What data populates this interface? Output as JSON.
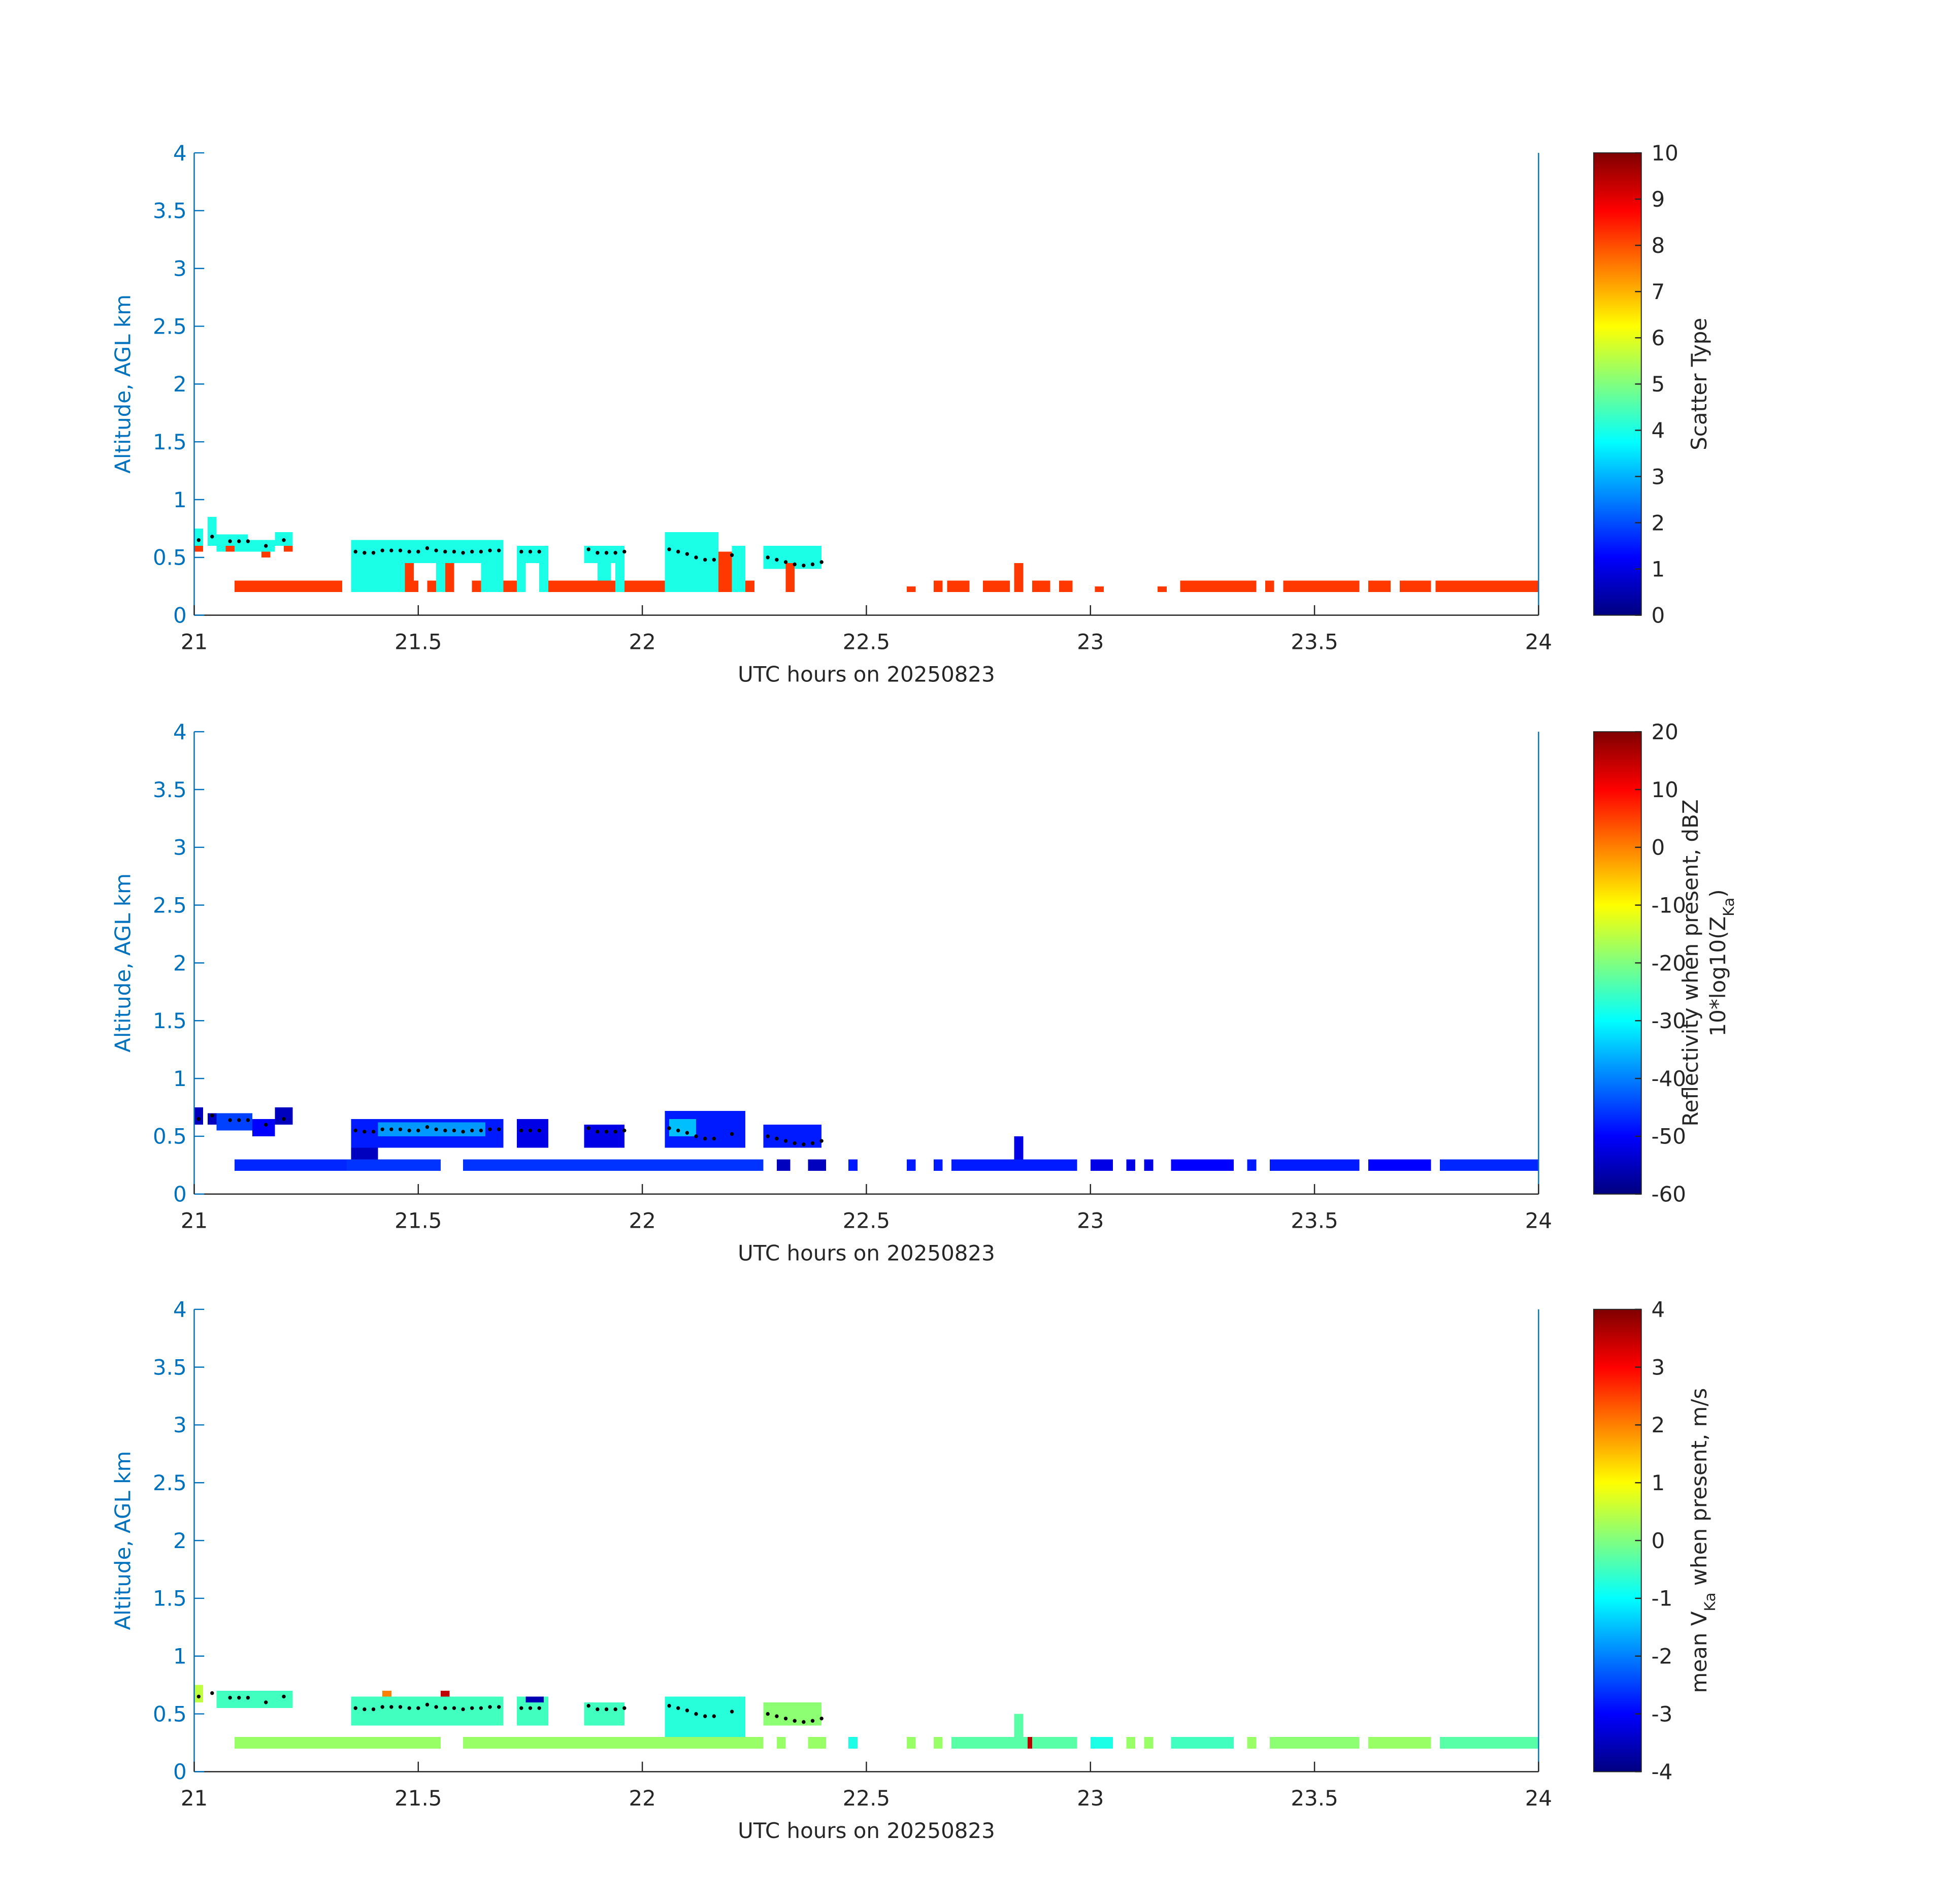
{
  "chart_data": [
    {
      "type": "heatmap",
      "colormap": "jet",
      "xlabel": "UTC hours on 20250823",
      "ylabel": "Altitude, AGL km",
      "xlim": [
        21,
        24
      ],
      "ylim": [
        0,
        4
      ],
      "xticks": [
        21,
        21.5,
        22,
        22.5,
        23,
        23.5,
        24
      ],
      "yticks": [
        0,
        0.5,
        1,
        1.5,
        2,
        2.5,
        3,
        3.5,
        4
      ],
      "colorbar": {
        "label": [
          [
            "Scatter Type"
          ]
        ],
        "lim": [
          0,
          10
        ],
        "ticks": [
          0,
          1,
          2,
          3,
          4,
          5,
          6,
          7,
          8,
          9,
          10
        ]
      },
      "cells": [
        [
          21.0,
          21.02,
          0.6,
          0.75,
          4
        ],
        [
          21.0,
          21.02,
          0.55,
          0.6,
          8.2
        ],
        [
          21.03,
          21.05,
          0.6,
          0.85,
          4
        ],
        [
          21.05,
          21.12,
          0.55,
          0.7,
          4
        ],
        [
          21.07,
          21.09,
          0.55,
          0.6,
          8.2
        ],
        [
          21.12,
          21.18,
          0.55,
          0.65,
          4
        ],
        [
          21.15,
          21.17,
          0.5,
          0.55,
          8.2
        ],
        [
          21.18,
          21.22,
          0.6,
          0.72,
          4
        ],
        [
          21.2,
          21.22,
          0.55,
          0.6,
          8.2
        ],
        [
          21.09,
          21.33,
          0.2,
          0.3,
          8.2
        ],
        [
          21.35,
          21.47,
          0.2,
          0.65,
          4
        ],
        [
          21.47,
          21.54,
          0.45,
          0.65,
          4
        ],
        [
          21.47,
          21.49,
          0.2,
          0.45,
          8.2
        ],
        [
          21.49,
          21.5,
          0.2,
          0.3,
          8.2
        ],
        [
          21.52,
          21.54,
          0.2,
          0.3,
          8.2
        ],
        [
          21.54,
          21.57,
          0.2,
          0.65,
          4
        ],
        [
          21.56,
          21.58,
          0.2,
          0.45,
          8.2
        ],
        [
          21.57,
          21.6,
          0.45,
          0.65,
          4
        ],
        [
          21.6,
          21.64,
          0.45,
          0.65,
          4
        ],
        [
          21.62,
          21.64,
          0.2,
          0.3,
          8.2
        ],
        [
          21.64,
          21.69,
          0.2,
          0.65,
          4
        ],
        [
          21.69,
          21.72,
          0.2,
          0.3,
          8.2
        ],
        [
          21.72,
          21.74,
          0.2,
          0.6,
          4
        ],
        [
          21.74,
          21.77,
          0.45,
          0.6,
          4
        ],
        [
          21.77,
          21.79,
          0.2,
          0.6,
          4
        ],
        [
          21.79,
          21.93,
          0.2,
          0.3,
          8.2
        ],
        [
          21.87,
          21.96,
          0.45,
          0.6,
          4
        ],
        [
          21.9,
          21.93,
          0.3,
          0.45,
          4
        ],
        [
          21.93,
          22.05,
          0.2,
          0.3,
          8.2
        ],
        [
          21.94,
          21.96,
          0.2,
          0.6,
          4
        ],
        [
          22.05,
          22.17,
          0.2,
          0.72,
          4
        ],
        [
          22.17,
          22.2,
          0.2,
          0.55,
          8.2
        ],
        [
          22.2,
          22.23,
          0.2,
          0.6,
          4
        ],
        [
          22.23,
          22.25,
          0.2,
          0.3,
          8.2
        ],
        [
          22.27,
          22.4,
          0.4,
          0.6,
          4
        ],
        [
          22.32,
          22.34,
          0.2,
          0.45,
          8.2
        ],
        [
          22.59,
          22.61,
          0.2,
          0.25,
          8.2
        ],
        [
          22.65,
          22.67,
          0.2,
          0.3,
          8.2
        ],
        [
          22.68,
          22.73,
          0.2,
          0.3,
          8.2
        ],
        [
          22.76,
          22.82,
          0.2,
          0.3,
          8.2
        ],
        [
          22.83,
          22.85,
          0.2,
          0.45,
          8.2
        ],
        [
          22.87,
          22.91,
          0.2,
          0.3,
          8.2
        ],
        [
          22.93,
          22.96,
          0.2,
          0.3,
          8.2
        ],
        [
          23.01,
          23.03,
          0.2,
          0.25,
          8.2
        ],
        [
          23.15,
          23.17,
          0.2,
          0.25,
          8.2
        ],
        [
          23.2,
          23.22,
          0.2,
          0.3,
          8.2
        ],
        [
          23.22,
          23.37,
          0.2,
          0.3,
          8.2
        ],
        [
          23.39,
          23.41,
          0.2,
          0.3,
          8.2
        ],
        [
          23.43,
          23.6,
          0.2,
          0.3,
          8.2
        ],
        [
          23.62,
          23.67,
          0.2,
          0.3,
          8.2
        ],
        [
          23.69,
          23.76,
          0.2,
          0.3,
          8.2
        ],
        [
          23.77,
          24,
          0.2,
          0.3,
          8.2
        ]
      ],
      "series": [
        {
          "color": "#000000",
          "x": [
            21.01,
            21.04,
            21.08,
            21.1,
            21.12,
            21.16,
            21.2,
            21.36,
            21.38,
            21.4,
            21.42,
            21.44,
            21.46,
            21.48,
            21.5,
            21.52,
            21.54,
            21.56,
            21.58,
            21.6,
            21.62,
            21.64,
            21.66,
            21.68,
            21.73,
            21.75,
            21.77,
            21.88,
            21.9,
            21.92,
            21.94,
            21.96,
            22.06,
            22.08,
            22.1,
            22.12,
            22.14,
            22.16,
            22.2,
            22.28,
            22.3,
            22.32,
            22.34,
            22.36,
            22.38,
            22.4
          ],
          "y": [
            0.65,
            0.68,
            0.64,
            0.64,
            0.64,
            0.6,
            0.65,
            0.55,
            0.54,
            0.54,
            0.56,
            0.56,
            0.56,
            0.55,
            0.55,
            0.58,
            0.56,
            0.55,
            0.55,
            0.54,
            0.55,
            0.55,
            0.56,
            0.56,
            0.55,
            0.55,
            0.55,
            0.57,
            0.54,
            0.54,
            0.54,
            0.55,
            0.57,
            0.55,
            0.53,
            0.5,
            0.48,
            0.48,
            0.52,
            0.5,
            0.48,
            0.46,
            0.44,
            0.43,
            0.44,
            0.46
          ]
        }
      ]
    },
    {
      "type": "heatmap",
      "colormap": "jet",
      "xlabel": "UTC hours on 20250823",
      "ylabel": "Altitude, AGL km",
      "xlim": [
        21,
        24
      ],
      "ylim": [
        0,
        4
      ],
      "xticks": [
        21,
        21.5,
        22,
        22.5,
        23,
        23.5,
        24
      ],
      "yticks": [
        0,
        0.5,
        1,
        1.5,
        2,
        2.5,
        3,
        3.5,
        4
      ],
      "colorbar": {
        "label": [
          [
            "Reflectivity when present, dBZ"
          ],
          [
            "10*log10(Z",
            "Ka",
            ")"
          ]
        ],
        "lim": [
          -60,
          20
        ],
        "ticks": [
          -60,
          -50,
          -40,
          -30,
          -20,
          -10,
          0,
          10,
          20
        ]
      },
      "cells": [
        [
          21.0,
          21.02,
          0.6,
          0.75,
          -55
        ],
        [
          21.03,
          21.05,
          0.6,
          0.7,
          -55
        ],
        [
          21.05,
          21.13,
          0.55,
          0.7,
          -45
        ],
        [
          21.13,
          21.18,
          0.5,
          0.65,
          -50
        ],
        [
          21.18,
          21.22,
          0.6,
          0.75,
          -55
        ],
        [
          21.09,
          21.34,
          0.2,
          0.3,
          -47
        ],
        [
          21.34,
          21.55,
          0.2,
          0.3,
          -46
        ],
        [
          21.6,
          22.27,
          0.2,
          0.3,
          -46
        ],
        [
          21.35,
          21.69,
          0.4,
          0.65,
          -48
        ],
        [
          21.41,
          21.65,
          0.5,
          0.62,
          -38
        ],
        [
          21.35,
          21.41,
          0.3,
          0.4,
          -55
        ],
        [
          21.72,
          21.79,
          0.4,
          0.65,
          -52
        ],
        [
          21.87,
          21.96,
          0.4,
          0.6,
          -52
        ],
        [
          22.05,
          22.23,
          0.4,
          0.72,
          -48
        ],
        [
          22.06,
          22.12,
          0.5,
          0.65,
          -35
        ],
        [
          22.27,
          22.4,
          0.4,
          0.6,
          -48
        ],
        [
          22.3,
          22.33,
          0.2,
          0.3,
          -55
        ],
        [
          22.37,
          22.41,
          0.2,
          0.3,
          -55
        ],
        [
          22.46,
          22.48,
          0.2,
          0.3,
          -48
        ],
        [
          22.59,
          22.61,
          0.2,
          0.3,
          -48
        ],
        [
          22.65,
          22.67,
          0.2,
          0.3,
          -48
        ],
        [
          22.69,
          22.97,
          0.2,
          0.3,
          -48
        ],
        [
          22.83,
          22.85,
          0.3,
          0.5,
          -52
        ],
        [
          23.0,
          23.05,
          0.2,
          0.3,
          -52
        ],
        [
          23.08,
          23.1,
          0.2,
          0.3,
          -52
        ],
        [
          23.12,
          23.14,
          0.2,
          0.3,
          -52
        ],
        [
          23.18,
          23.32,
          0.2,
          0.3,
          -50
        ],
        [
          23.35,
          23.37,
          0.2,
          0.3,
          -48
        ],
        [
          23.4,
          23.6,
          0.2,
          0.3,
          -48
        ],
        [
          23.62,
          23.76,
          0.2,
          0.3,
          -50
        ],
        [
          23.78,
          24,
          0.2,
          0.3,
          -47
        ]
      ],
      "series": [
        {
          "color": "#000000",
          "x": [
            21.01,
            21.04,
            21.08,
            21.1,
            21.12,
            21.16,
            21.2,
            21.36,
            21.38,
            21.4,
            21.42,
            21.44,
            21.46,
            21.48,
            21.5,
            21.52,
            21.54,
            21.56,
            21.58,
            21.6,
            21.62,
            21.64,
            21.66,
            21.68,
            21.73,
            21.75,
            21.77,
            21.88,
            21.9,
            21.92,
            21.94,
            21.96,
            22.06,
            22.08,
            22.1,
            22.12,
            22.14,
            22.16,
            22.2,
            22.28,
            22.3,
            22.32,
            22.34,
            22.36,
            22.38,
            22.4
          ],
          "y": [
            0.65,
            0.68,
            0.64,
            0.64,
            0.64,
            0.6,
            0.65,
            0.55,
            0.54,
            0.54,
            0.56,
            0.56,
            0.56,
            0.55,
            0.55,
            0.58,
            0.56,
            0.55,
            0.55,
            0.54,
            0.55,
            0.55,
            0.56,
            0.56,
            0.55,
            0.55,
            0.55,
            0.57,
            0.54,
            0.54,
            0.54,
            0.55,
            0.57,
            0.55,
            0.53,
            0.5,
            0.48,
            0.48,
            0.52,
            0.5,
            0.48,
            0.46,
            0.44,
            0.43,
            0.44,
            0.46
          ]
        }
      ]
    },
    {
      "type": "heatmap",
      "colormap": "jet",
      "xlabel": "UTC hours on 20250823",
      "ylabel": "Altitude, AGL km",
      "xlim": [
        21,
        24
      ],
      "ylim": [
        0,
        4
      ],
      "xticks": [
        21,
        21.5,
        22,
        22.5,
        23,
        23.5,
        24
      ],
      "yticks": [
        0,
        0.5,
        1,
        1.5,
        2,
        2.5,
        3,
        3.5,
        4
      ],
      "colorbar": {
        "label": [
          [
            "mean V",
            "Ka",
            " when present, m/s"
          ]
        ],
        "lim": [
          -4,
          4
        ],
        "ticks": [
          -4,
          -3,
          -2,
          -1,
          0,
          1,
          2,
          3,
          4
        ]
      },
      "cells": [
        [
          21.0,
          21.02,
          0.6,
          0.75,
          0.5
        ],
        [
          21.05,
          21.22,
          0.55,
          0.7,
          -0.5
        ],
        [
          21.09,
          21.34,
          0.2,
          0.3,
          0.2
        ],
        [
          21.34,
          21.55,
          0.2,
          0.3,
          0.2
        ],
        [
          21.6,
          22.27,
          0.2,
          0.3,
          0.2
        ],
        [
          21.35,
          21.69,
          0.4,
          0.65,
          -0.5
        ],
        [
          21.42,
          21.44,
          0.65,
          0.7,
          2
        ],
        [
          21.55,
          21.57,
          0.65,
          0.7,
          3.5
        ],
        [
          21.72,
          21.79,
          0.4,
          0.65,
          -0.5
        ],
        [
          21.74,
          21.78,
          0.6,
          0.65,
          -3.6
        ],
        [
          21.87,
          21.96,
          0.4,
          0.6,
          -0.5
        ],
        [
          22.05,
          22.23,
          0.3,
          0.65,
          -0.7
        ],
        [
          22.27,
          22.4,
          0.4,
          0.6,
          0.1
        ],
        [
          22.3,
          22.32,
          0.2,
          0.3,
          0.2
        ],
        [
          22.37,
          22.41,
          0.2,
          0.3,
          0.2
        ],
        [
          22.46,
          22.48,
          0.2,
          0.3,
          -0.8
        ],
        [
          22.59,
          22.61,
          0.2,
          0.3,
          0.2
        ],
        [
          22.65,
          22.67,
          0.2,
          0.3,
          0.2
        ],
        [
          22.69,
          22.97,
          0.2,
          0.3,
          -0.3
        ],
        [
          22.83,
          22.85,
          0.3,
          0.5,
          -0.3
        ],
        [
          22.86,
          22.87,
          0.2,
          0.3,
          3.5
        ],
        [
          23.0,
          23.05,
          0.2,
          0.3,
          -0.8
        ],
        [
          23.08,
          23.1,
          0.2,
          0.3,
          0.2
        ],
        [
          23.12,
          23.14,
          0.2,
          0.3,
          0.2
        ],
        [
          23.18,
          23.32,
          0.2,
          0.3,
          -0.5
        ],
        [
          23.35,
          23.37,
          0.2,
          0.3,
          0.2
        ],
        [
          23.4,
          23.6,
          0.2,
          0.3,
          0.1
        ],
        [
          23.62,
          23.76,
          0.2,
          0.3,
          0.2
        ],
        [
          23.78,
          24,
          0.2,
          0.3,
          -0.3
        ]
      ],
      "series": [
        {
          "color": "#000000",
          "x": [
            21.01,
            21.04,
            21.08,
            21.1,
            21.12,
            21.16,
            21.2,
            21.36,
            21.38,
            21.4,
            21.42,
            21.44,
            21.46,
            21.48,
            21.5,
            21.52,
            21.54,
            21.56,
            21.58,
            21.6,
            21.62,
            21.64,
            21.66,
            21.68,
            21.73,
            21.75,
            21.77,
            21.88,
            21.9,
            21.92,
            21.94,
            21.96,
            22.06,
            22.08,
            22.1,
            22.12,
            22.14,
            22.16,
            22.2,
            22.28,
            22.3,
            22.32,
            22.34,
            22.36,
            22.38,
            22.4
          ],
          "y": [
            0.65,
            0.68,
            0.64,
            0.64,
            0.64,
            0.6,
            0.65,
            0.55,
            0.54,
            0.54,
            0.56,
            0.56,
            0.56,
            0.55,
            0.55,
            0.58,
            0.56,
            0.55,
            0.55,
            0.54,
            0.55,
            0.55,
            0.56,
            0.56,
            0.55,
            0.55,
            0.55,
            0.57,
            0.54,
            0.54,
            0.54,
            0.55,
            0.57,
            0.55,
            0.53,
            0.5,
            0.48,
            0.48,
            0.52,
            0.5,
            0.48,
            0.46,
            0.44,
            0.43,
            0.44,
            0.46
          ]
        }
      ]
    }
  ]
}
